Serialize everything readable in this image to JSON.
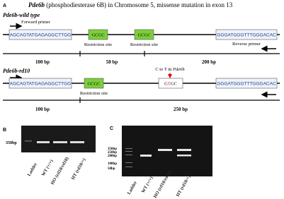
{
  "panel_a": {
    "label": "A",
    "title_gene": "Pde6b",
    "title_rest": " (phosphodiesterase 6B) in Chromosome 5,  missense mutation in exon 13",
    "wild": {
      "label": "Pde6b-wild type",
      "forward_primer": "Forward primer",
      "forward_seq": "AGCAGTATGAGAGGCTTGG",
      "site1": "GCGC",
      "site2": "GCGC",
      "site1_label": "Restriction site",
      "site2_label": "Restriction site",
      "reverse_seq": "GGGATGGGTTTGGGACAC",
      "reverse_primer": "Reverse primer",
      "sizes": [
        "100 bp",
        "50 bp",
        "200 bp"
      ]
    },
    "rd10": {
      "label": "Pde6b-rd10",
      "forward_seq": "AGCAGTATGAGAGGCTTGG",
      "site1": "GCGC",
      "site1_label": "Restriction site",
      "mutation_label": "C to T in ",
      "mutation_gene": "Pde6b",
      "mut_g": "G",
      "mut_t": "T",
      "mut_gc": "GC",
      "reverse_seq": "GGGATGGGTTTGGGACAC",
      "sizes": [
        "100 bp",
        "250 bp"
      ]
    }
  },
  "panel_b": {
    "label": "B",
    "marker": "350bp",
    "lanes": [
      "Ladder",
      "WT (+/+)",
      "HO (rd10/rd10)",
      "HT (rd10/+)"
    ]
  },
  "panel_c": {
    "label": "C",
    "markers": [
      "350bp",
      "250bp",
      "200bp",
      "100bp",
      "50bp"
    ],
    "lanes": [
      "Ladder",
      "WT (+/+)",
      "HO (rd10/rd10)",
      "HT (rd10/+)"
    ]
  }
}
